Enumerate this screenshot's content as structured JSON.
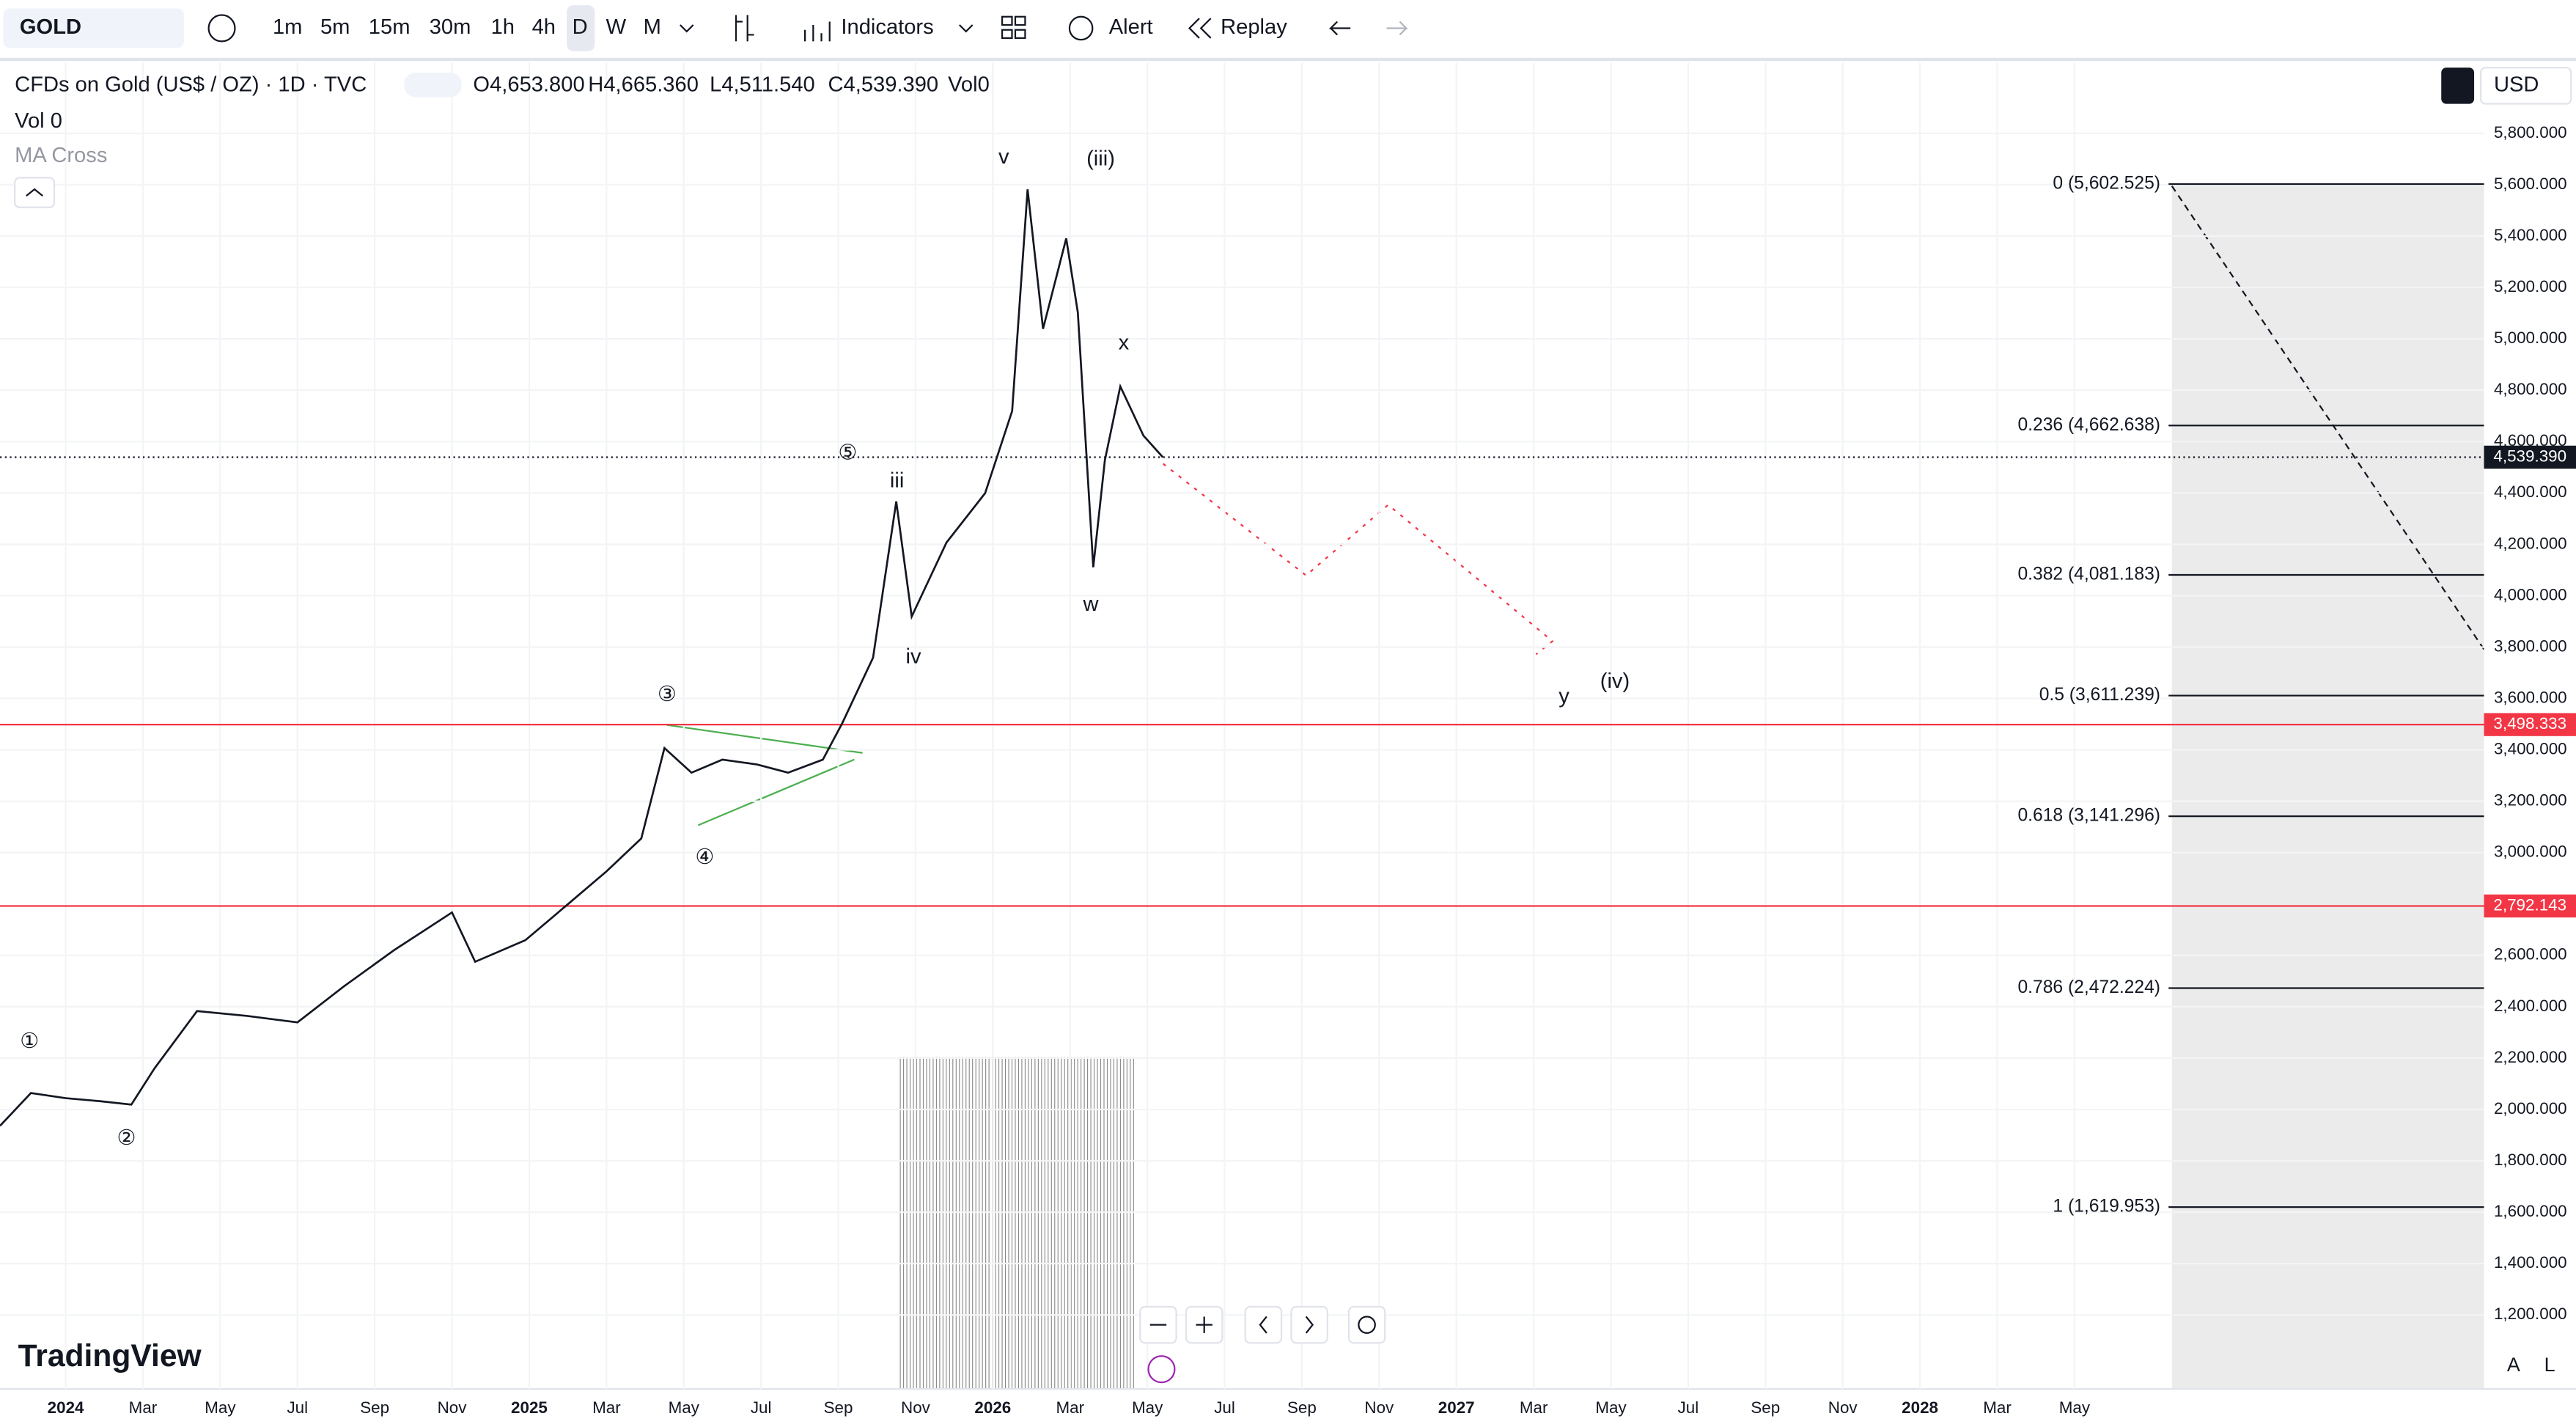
{
  "toolbar": {
    "symbol": "GOLD",
    "intervals": [
      "1m",
      "5m",
      "15m",
      "30m",
      "1h",
      "4h",
      "D",
      "W",
      "M"
    ],
    "indicators": "Indicators",
    "alert": "Alert",
    "replay": "Replay"
  },
  "legend": {
    "title": "CFDs on Gold (US$ / OZ) · 1D · TVC",
    "open": "O4,653.800",
    "high": "H4,665.360",
    "low": "L4,511.540",
    "close": "C4,539.390",
    "volume": "Vol0",
    "vol_label": "Vol 0",
    "indicator": "MA Cross"
  },
  "currency": "USD",
  "brand": "TradingView",
  "scale_modes": [
    "A",
    "L"
  ],
  "chart_data": {
    "type": "line",
    "grid": true,
    "x": [
      -1.7,
      -0.9,
      0,
      0.9,
      1.7,
      2.3,
      3.4,
      4.7,
      6.0,
      7.2,
      8.5,
      10.0,
      10.6,
      11.9,
      13.0,
      14.0,
      14.9,
      15.5,
      16.2,
      17.0,
      17.9,
      18.7,
      19.6,
      20.1,
      20.9,
      21.5,
      21.9,
      22.8,
      23.8,
      24.5,
      24.9,
      25.3,
      25.9,
      26.2,
      26.6,
      26.9,
      27.3,
      27.9,
      28.4
    ],
    "series": [
      {
        "name": "GOLD",
        "color": "#131722",
        "values": [
          1936,
          2064,
          2044,
          2032,
          2019,
          2160,
          2383,
          2364,
          2339,
          2479,
          2620,
          2767,
          2575,
          2659,
          2799,
          2927,
          3055,
          3407,
          3311,
          3362,
          3343,
          3311,
          3362,
          3503,
          3759,
          4367,
          3919,
          4207,
          4399,
          4719,
          5582,
          5039,
          5391,
          5103,
          4111,
          4527,
          4815,
          4623,
          4539.39
        ]
      }
    ],
    "xlim": [
      -1.7,
      62.6
    ],
    "ylim": [
      912,
      6075
    ],
    "xticks": [
      {
        "value": 0,
        "label": "2024"
      },
      {
        "value": 2,
        "label": "Mar"
      },
      {
        "value": 4,
        "label": "May"
      },
      {
        "value": 6,
        "label": "Jul"
      },
      {
        "value": 8,
        "label": "Sep"
      },
      {
        "value": 10,
        "label": "Nov"
      },
      {
        "value": 12,
        "label": "2025"
      },
      {
        "value": 14,
        "label": "Mar"
      },
      {
        "value": 16,
        "label": "May"
      },
      {
        "value": 18,
        "label": "Jul"
      },
      {
        "value": 20,
        "label": "Sep"
      },
      {
        "value": 22,
        "label": "Nov"
      },
      {
        "value": 24,
        "label": "2026"
      },
      {
        "value": 26,
        "label": "Mar"
      },
      {
        "value": 28,
        "label": "May"
      },
      {
        "value": 30,
        "label": "Jul"
      },
      {
        "value": 32,
        "label": "Sep"
      },
      {
        "value": 34,
        "label": "Nov"
      },
      {
        "value": 36,
        "label": "2027"
      },
      {
        "value": 38,
        "label": "Mar"
      },
      {
        "value": 40,
        "label": "May"
      },
      {
        "value": 42,
        "label": "Jul"
      },
      {
        "value": 44,
        "label": "Sep"
      },
      {
        "value": 46,
        "label": "Nov"
      },
      {
        "value": 48,
        "label": "2028"
      },
      {
        "value": 50,
        "label": "Mar"
      },
      {
        "value": 52,
        "label": "May"
      }
    ],
    "yticks": [
      {
        "value": 5800,
        "label": "5,800.000"
      },
      {
        "value": 5600,
        "label": "5,600.000"
      },
      {
        "value": 5400,
        "label": "5,400.000"
      },
      {
        "value": 5200,
        "label": "5,200.000"
      },
      {
        "value": 5000,
        "label": "5,000.000"
      },
      {
        "value": 4800,
        "label": "4,800.000"
      },
      {
        "value": 4600,
        "label": "4,600.000"
      },
      {
        "value": 4400,
        "label": "4,400.000"
      },
      {
        "value": 4200,
        "label": "4,200.000"
      },
      {
        "value": 4000,
        "label": "4,000.000"
      },
      {
        "value": 3800,
        "label": "3,800.000"
      },
      {
        "value": 3600,
        "label": "3,600.000"
      },
      {
        "value": 3400,
        "label": "3,400.000"
      },
      {
        "value": 3200,
        "label": "3,200.000"
      },
      {
        "value": 3000,
        "label": "3,000.000"
      },
      {
        "value": 2600,
        "label": "2,600.000"
      },
      {
        "value": 2400,
        "label": "2,400.000"
      },
      {
        "value": 2200,
        "label": "2,200.000"
      },
      {
        "value": 2000,
        "label": "2,000.000"
      },
      {
        "value": 1800,
        "label": "1,800.000"
      },
      {
        "value": 1600,
        "label": "1,600.000"
      },
      {
        "value": 1400,
        "label": "1,400.000"
      },
      {
        "value": 1200,
        "label": "1,200.000"
      }
    ],
    "fib_levels": [
      {
        "label": "0 (5,602.525)",
        "value": 5602.525
      },
      {
        "label": "0.236 (4,662.638)",
        "value": 4662.638
      },
      {
        "label": "0.382 (4,081.183)",
        "value": 4081.183
      },
      {
        "label": "0.5 (3,611.239)",
        "value": 3611.239
      },
      {
        "label": "0.618 (3,141.296)",
        "value": 3141.296
      },
      {
        "label": "0.786 (2,472.224)",
        "value": 2472.224
      },
      {
        "label": "1 (1,619.953)",
        "value": 1619.953
      }
    ],
    "horizontal_lines": [
      {
        "value": 3498.333,
        "value_label": "3,498.333",
        "color": "#f23645"
      },
      {
        "value": 2792.143,
        "value_label": "2,792.143",
        "color": "#f23645"
      }
    ],
    "last_price": {
      "value": 4539.39,
      "value_label": "4,539.390"
    },
    "annotations": [
      "①",
      "②",
      "③",
      "④",
      "⑤",
      "iii",
      "iv",
      "v",
      "(iii)",
      "w",
      "x",
      "y",
      "(iv)"
    ]
  }
}
